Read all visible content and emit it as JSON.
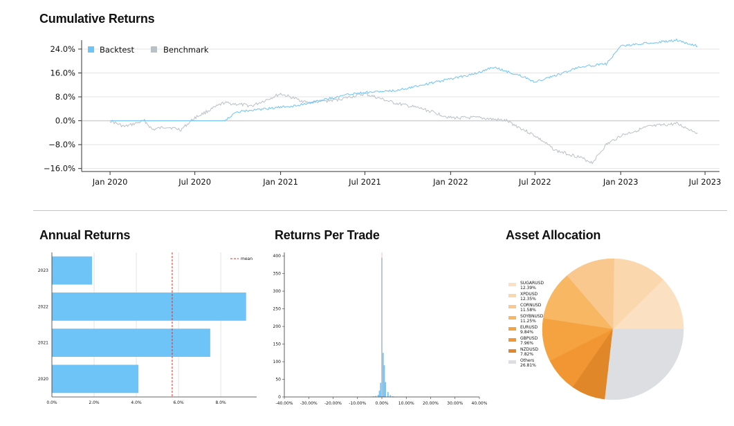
{
  "titles": {
    "cumulative": "Cumulative Returns",
    "annual": "Annual Returns",
    "per_trade": "Returns Per Trade",
    "allocation": "Asset Allocation"
  },
  "colors": {
    "backtest": "#6ec3f7",
    "benchmark": "#b9c0c6",
    "bar": "#6ec3f7",
    "mean": "#e8291c",
    "grid": "#e3e3e3",
    "pie": [
      "#fbe0c2",
      "#fbd7ad",
      "#f9c88f",
      "#f7b763",
      "#f5a340",
      "#f29633",
      "#e0872a",
      "#dcdee1"
    ]
  },
  "chart_data": [
    {
      "id": "cumulative",
      "type": "line",
      "title": "Cumulative Returns",
      "legend": [
        "Backtest",
        "Benchmark"
      ],
      "legend_position": "top-left",
      "ylim": [
        -0.17,
        0.27
      ],
      "yticks": [
        -0.16,
        -0.08,
        0.0,
        0.08,
        0.16,
        0.24
      ],
      "ytick_labels": [
        "−16.0%",
        "−8.0%",
        "0.0%",
        "8.0%",
        "16.0%",
        "24.0%"
      ],
      "xlim": [
        "2019-11-01",
        "2023-08-01"
      ],
      "xticks": [
        "2020-01-01",
        "2020-07-01",
        "2021-01-01",
        "2021-07-01",
        "2022-01-01",
        "2022-07-01",
        "2023-01-01",
        "2023-07-01"
      ],
      "xtick_labels": [
        "Jan 2020",
        "Jul 2020",
        "Jan 2021",
        "Jul 2021",
        "Jan 2022",
        "Jul 2022",
        "Jan 2023",
        "Jul 2023"
      ],
      "series": [
        {
          "name": "Backtest",
          "x": [
            "2020-01-01",
            "2020-04-01",
            "2020-07-01",
            "2020-09-01",
            "2020-10-01",
            "2020-12-01",
            "2021-02-01",
            "2021-04-01",
            "2021-06-01",
            "2021-07-01",
            "2021-09-01",
            "2021-11-01",
            "2022-01-01",
            "2022-03-01",
            "2022-04-01",
            "2022-06-01",
            "2022-07-01",
            "2022-09-01",
            "2022-10-01",
            "2022-12-01",
            "2023-01-01",
            "2023-03-01",
            "2023-05-01",
            "2023-06-15"
          ],
          "y": [
            0.0,
            0.0,
            0.0,
            0.0,
            0.03,
            0.04,
            0.05,
            0.07,
            0.09,
            0.095,
            0.1,
            0.12,
            0.14,
            0.16,
            0.18,
            0.15,
            0.13,
            0.16,
            0.18,
            0.19,
            0.25,
            0.26,
            0.27,
            0.25
          ]
        },
        {
          "name": "Benchmark",
          "x": [
            "2020-01-01",
            "2020-02-01",
            "2020-03-15",
            "2020-04-01",
            "2020-05-01",
            "2020-06-01",
            "2020-07-01",
            "2020-09-01",
            "2020-11-01",
            "2021-01-01",
            "2021-03-01",
            "2021-05-01",
            "2021-07-01",
            "2021-09-01",
            "2021-11-01",
            "2022-01-01",
            "2022-03-01",
            "2022-05-01",
            "2022-07-01",
            "2022-08-15",
            "2022-10-01",
            "2022-11-01",
            "2022-12-01",
            "2023-01-01",
            "2023-03-01",
            "2023-05-01",
            "2023-06-15"
          ],
          "y": [
            0.0,
            -0.02,
            0.0,
            -0.03,
            -0.02,
            -0.03,
            0.01,
            0.06,
            0.05,
            0.09,
            0.06,
            0.07,
            0.09,
            0.06,
            0.04,
            0.01,
            0.01,
            0.0,
            -0.05,
            -0.1,
            -0.12,
            -0.14,
            -0.08,
            -0.05,
            -0.02,
            -0.01,
            -0.04
          ]
        }
      ]
    },
    {
      "id": "annual",
      "type": "bar",
      "orientation": "horizontal",
      "title": "Annual Returns",
      "categories": [
        "2023",
        "2022",
        "2021",
        "2020"
      ],
      "values": [
        1.9,
        9.2,
        7.5,
        4.1
      ],
      "mean": 5.7,
      "mean_label": "mean",
      "xlim": [
        0,
        9.7
      ],
      "xticks": [
        0,
        2,
        4,
        6,
        8
      ],
      "xtick_labels": [
        "0.0%",
        "2.0%",
        "4.0%",
        "6.0%",
        "8.0%"
      ],
      "legend_position": "top-right"
    },
    {
      "id": "per_trade",
      "type": "bar",
      "title": "Returns Per Trade",
      "bins_center": [
        -4.5,
        -3.5,
        -2.5,
        -1.5,
        -1.0,
        -0.5,
        0.0,
        0.5,
        1.0,
        1.5,
        2.5,
        3.5,
        4.5
      ],
      "counts": [
        1,
        2,
        3,
        6,
        18,
        40,
        395,
        125,
        90,
        42,
        14,
        5,
        2
      ],
      "mean_line": 0.0,
      "xlim": [
        -40,
        40
      ],
      "xticks": [
        -40,
        -30,
        -20,
        -10,
        0,
        10,
        20,
        30,
        40
      ],
      "xtick_labels": [
        "-40.00%",
        "-30.00%",
        "-20.00%",
        "-10.00%",
        "0.00%",
        "10.00%",
        "20.00%",
        "30.00%",
        "40.00%"
      ],
      "ylim": [
        0,
        410
      ],
      "yticks": [
        0,
        50,
        100,
        150,
        200,
        250,
        300,
        350,
        400
      ],
      "ytick_labels": [
        "0",
        "50",
        "100",
        "150",
        "200",
        "250",
        "300",
        "350",
        "400"
      ]
    },
    {
      "id": "allocation",
      "type": "pie",
      "title": "Asset Allocation",
      "legend_position": "left",
      "slices": [
        {
          "label": "SUGARUSD",
          "pct": "12.39%",
          "value": 12.39
        },
        {
          "label": "XPDUSD",
          "pct": "12.35%",
          "value": 12.35
        },
        {
          "label": "CORNUSD",
          "pct": "11.58%",
          "value": 11.58
        },
        {
          "label": "SOYBNUSD",
          "pct": "11.25%",
          "value": 11.25
        },
        {
          "label": "EURUSD",
          "pct": "9.84%",
          "value": 9.84
        },
        {
          "label": "GBPUSD",
          "pct": "7.96%",
          "value": 7.96
        },
        {
          "label": "NZDUSD",
          "pct": "7.82%",
          "value": 7.82
        },
        {
          "label": "Others",
          "pct": "26.81%",
          "value": 26.81
        }
      ]
    }
  ]
}
